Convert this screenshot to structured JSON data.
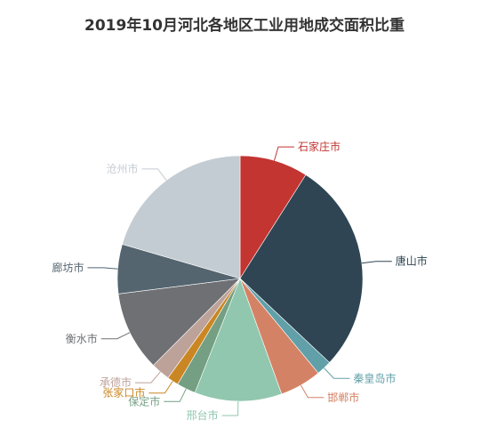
{
  "chart_data": {
    "type": "pie",
    "title": "2019年10月河北各地区工业用地成交面积比重",
    "slices": [
      {
        "name": "石家庄市",
        "value": 9.0,
        "color": "#c23531"
      },
      {
        "name": "唐山市",
        "value": 28.0,
        "color": "#2f4554"
      },
      {
        "name": "秦皇岛市",
        "value": 2.0,
        "color": "#61a0a8"
      },
      {
        "name": "邯郸市",
        "value": 5.5,
        "color": "#d48265"
      },
      {
        "name": "邢台市",
        "value": 11.5,
        "color": "#91c7ae"
      },
      {
        "name": "保定市",
        "value": 2.5,
        "color": "#749f83"
      },
      {
        "name": "张家口市",
        "value": 1.5,
        "color": "#ca8622"
      },
      {
        "name": "承德市",
        "value": 2.5,
        "color": "#bda29a"
      },
      {
        "name": "衡水市",
        "value": 10.5,
        "color": "#6e7074"
      },
      {
        "name": "廊坊市",
        "value": 6.5,
        "color": "#546570"
      },
      {
        "name": "沧州市",
        "value": 20.5,
        "color": "#c4ccd3"
      }
    ]
  }
}
